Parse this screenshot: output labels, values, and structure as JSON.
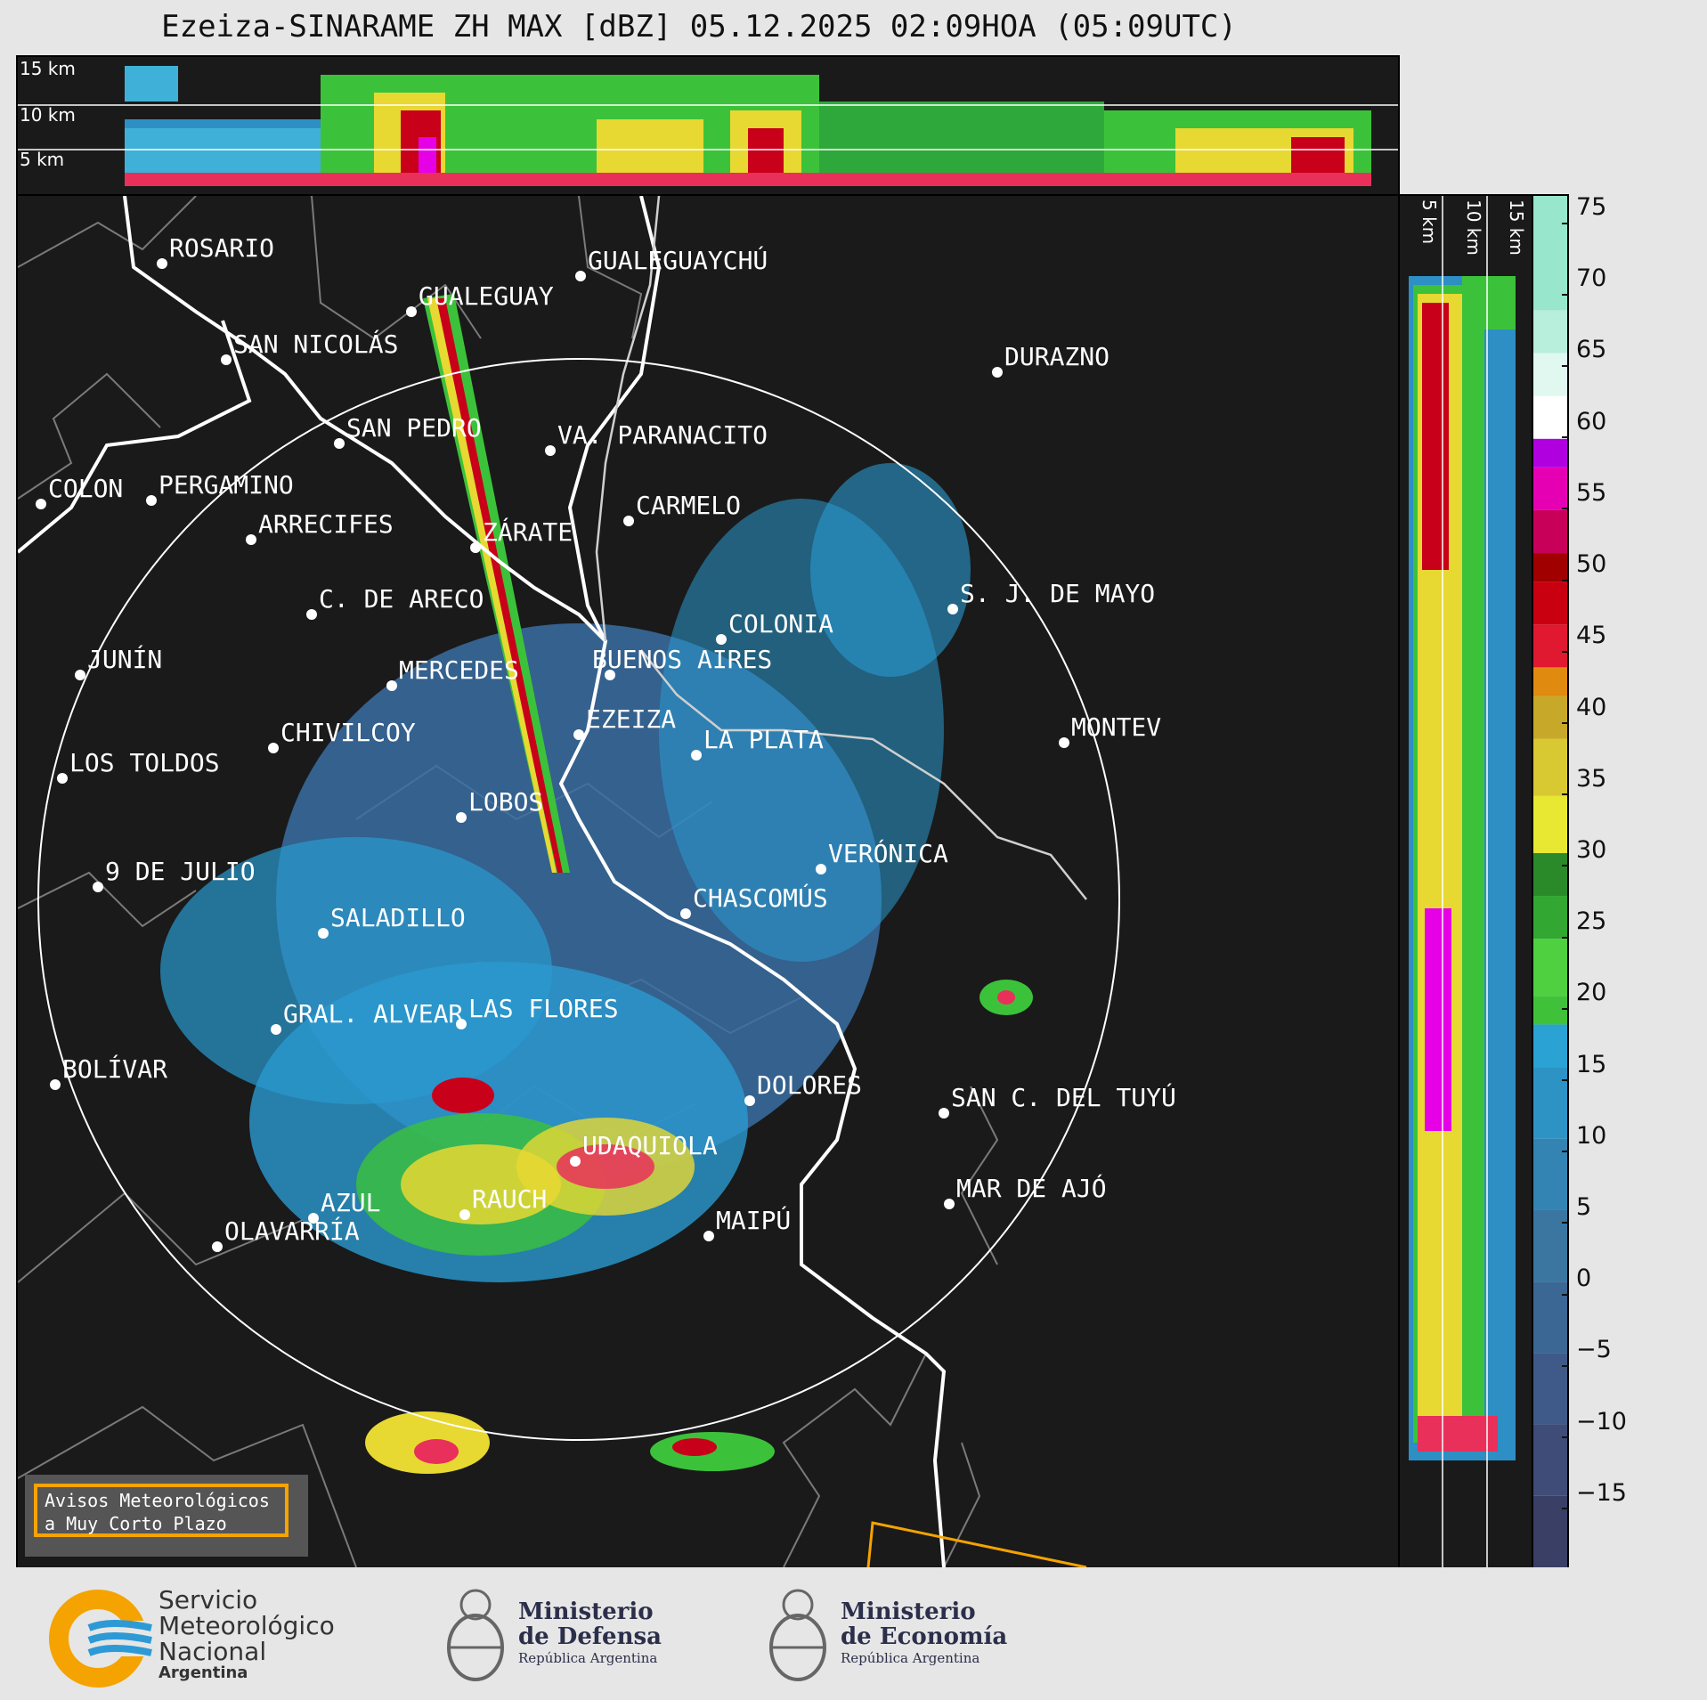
{
  "title": "Ezeiza-SINARAME ZH MAX [dBZ] 05.12.2025 02:09HOA (05:09UTC)",
  "top_panel": {
    "altitudes": [
      "15 km",
      "10 km",
      "5 km"
    ]
  },
  "side_panel": {
    "altitudes": [
      "5 km",
      "10 km",
      "15 km"
    ]
  },
  "map": {
    "cities": [
      {
        "name": "ROSARIO"
      },
      {
        "name": "GUALEGUAYCHÚ"
      },
      {
        "name": "GUALEGUAY"
      },
      {
        "name": "SAN NICOLÁS"
      },
      {
        "name": "DURAZNO"
      },
      {
        "name": "SAN PEDRO"
      },
      {
        "name": "VA. PARANACITO"
      },
      {
        "name": "COLON"
      },
      {
        "name": "PERGAMINO"
      },
      {
        "name": "CARMELO"
      },
      {
        "name": "ARRECIFES"
      },
      {
        "name": "ZÁRATE"
      },
      {
        "name": "S. J. DE MAYO"
      },
      {
        "name": "C. DE ARECO"
      },
      {
        "name": "COLONIA"
      },
      {
        "name": "JUNÍN"
      },
      {
        "name": "BUENOS AIRES"
      },
      {
        "name": "MERCEDES"
      },
      {
        "name": "EZEIZA"
      },
      {
        "name": "MONTEV"
      },
      {
        "name": "CHIVILCOY"
      },
      {
        "name": "LA PLATA"
      },
      {
        "name": "LOS TOLDOS"
      },
      {
        "name": "LOBOS"
      },
      {
        "name": "VERÓNICA"
      },
      {
        "name": "9 DE JULIO"
      },
      {
        "name": "CHASCOMÚS"
      },
      {
        "name": "SALADILLO"
      },
      {
        "name": "GRAL. ALVEAR"
      },
      {
        "name": "LAS FLORES"
      },
      {
        "name": "BOLÍVAR"
      },
      {
        "name": "DOLORES"
      },
      {
        "name": "SAN C. DEL TUYÚ"
      },
      {
        "name": "UDAQUIOLA"
      },
      {
        "name": "MAR DE AJÓ"
      },
      {
        "name": "AZUL"
      },
      {
        "name": "RAUCH"
      },
      {
        "name": "OLAVARRÍA"
      },
      {
        "name": "MAIPÚ"
      }
    ]
  },
  "colorbar": {
    "ticks": [
      "75",
      "70",
      "65",
      "60",
      "55",
      "50",
      "45",
      "40",
      "35",
      "30",
      "25",
      "20",
      "15",
      "10",
      "5",
      "0",
      "−5",
      "−10",
      "−15"
    ],
    "min": -20,
    "max": 76
  },
  "alert": {
    "line1": "Avisos Meteorológicos",
    "line2": "a Muy Corto Plazo"
  },
  "logos": {
    "smn_line1": "Servicio",
    "smn_line2": "Meteorológico",
    "smn_line3": "Nacional",
    "smn_line4": "Argentina",
    "def_line1": "Ministerio",
    "def_line2": "de Defensa",
    "def_line3": "República Argentina",
    "eco_line1": "Ministerio",
    "eco_line2": "de Economía",
    "eco_line3": "República Argentina"
  },
  "colors": {
    "river": "#ffffff",
    "boundary": "#7a7a7a",
    "range_ring": "#ffffff",
    "alert_border": "#f5a300",
    "smn_orange": "#f5a300",
    "smn_blue": "#2d9ad6"
  }
}
